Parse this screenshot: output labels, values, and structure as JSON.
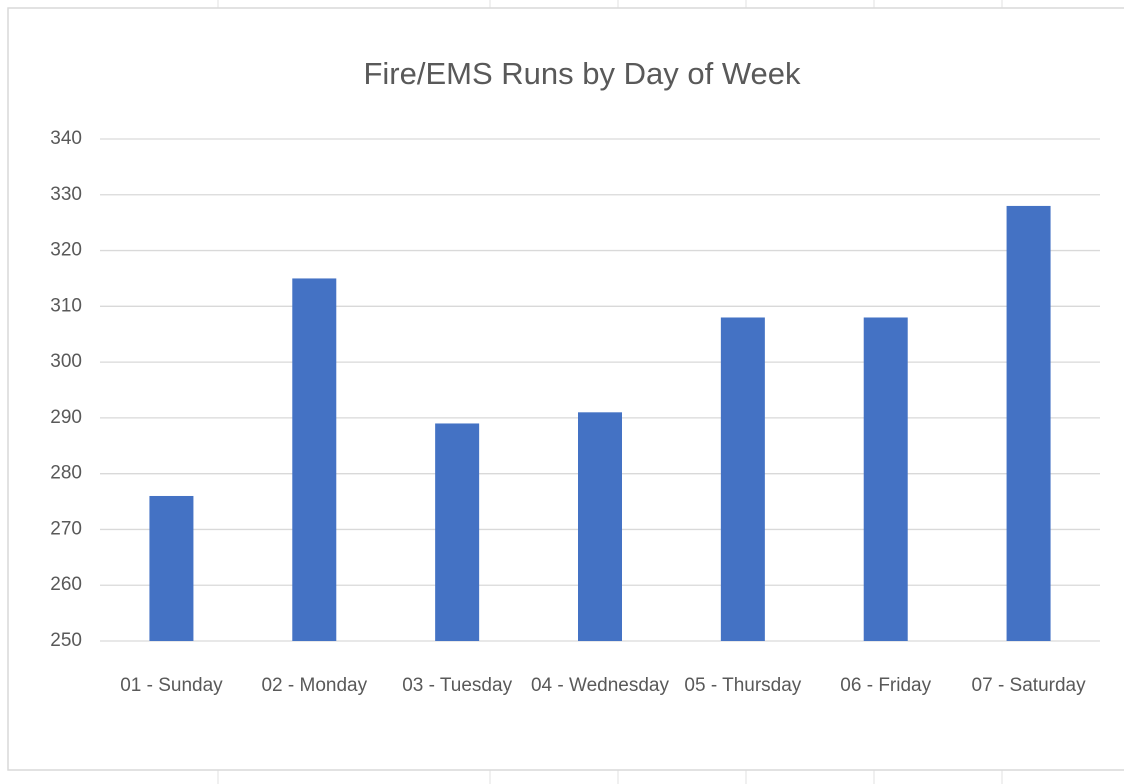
{
  "chart_data": {
    "type": "bar",
    "title": "Fire/EMS Runs by Day of Week",
    "categories": [
      "01 - Sunday",
      "02 - Monday",
      "03 - Tuesday",
      "04 - Wednesday",
      "05 - Thursday",
      "06 - Friday",
      "07 - Saturday"
    ],
    "values": [
      276,
      315,
      289,
      291,
      308,
      308,
      328
    ],
    "color": "#4472c4",
    "ylim": [
      250,
      340
    ],
    "yticks": [
      250,
      260,
      270,
      280,
      290,
      300,
      310,
      320,
      330,
      340
    ],
    "grid": true
  }
}
